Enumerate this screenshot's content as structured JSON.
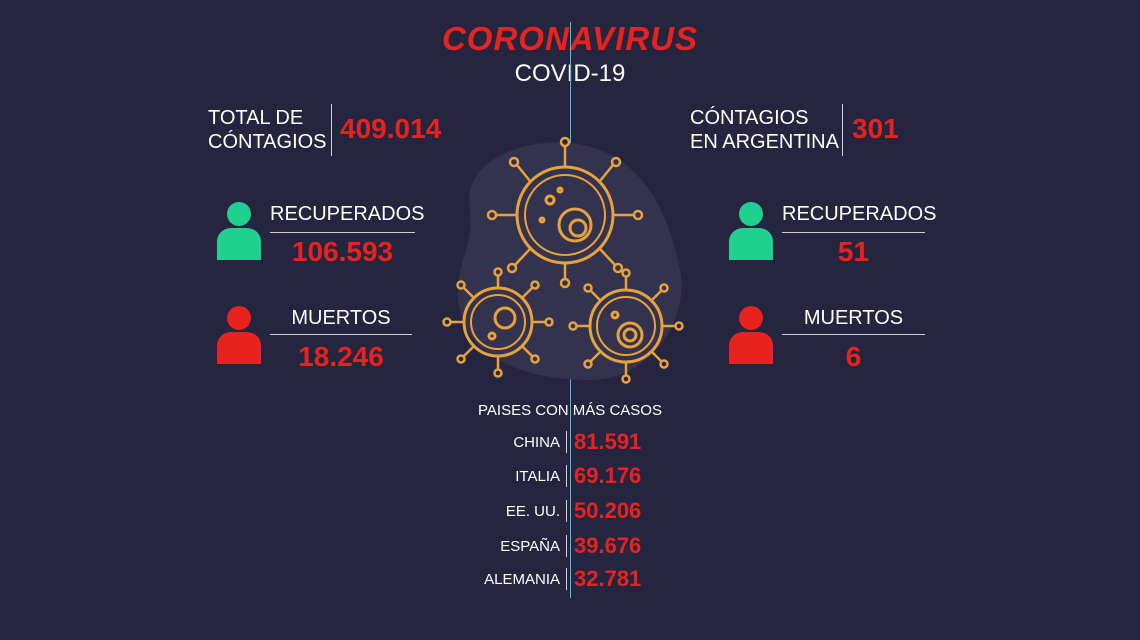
{
  "header": {
    "title": "CORONAVIRUS",
    "subtitle": "COVID-19"
  },
  "world": {
    "total_label_line1": "TOTAL DE",
    "total_label_line2": "CÓNTAGIOS",
    "total_value": "409.014",
    "recovered_label": "RECUPERADOS",
    "recovered_value": "106.593",
    "deaths_label": "MUERTOS",
    "deaths_value": "18.246"
  },
  "argentina": {
    "total_label_line1": "CÓNTAGIOS",
    "total_label_line2": "EN ARGENTINA",
    "total_value": "301",
    "recovered_label": "RECUPERADOS",
    "recovered_value": "51",
    "deaths_label": "MUERTOS",
    "deaths_value": "6"
  },
  "countries": {
    "title": "PAISES CON MÁS CASOS",
    "items": [
      {
        "name": "CHINA",
        "value": "81.591"
      },
      {
        "name": "ITALIA",
        "value": "69.176"
      },
      {
        "name": "EE. UU.",
        "value": "50.206"
      },
      {
        "name": "ESPAÑA",
        "value": "39.676"
      },
      {
        "name": "ALEMANIA",
        "value": "32.781"
      }
    ]
  },
  "colors": {
    "background": "#252540",
    "accent_red": "#e8231f",
    "recovered_green": "#1fd18f",
    "virus_orange": "#e8a23c",
    "center_line": "#39c8d8"
  },
  "icons": [
    "person-recovered-icon",
    "person-deceased-icon",
    "virus-icon"
  ]
}
